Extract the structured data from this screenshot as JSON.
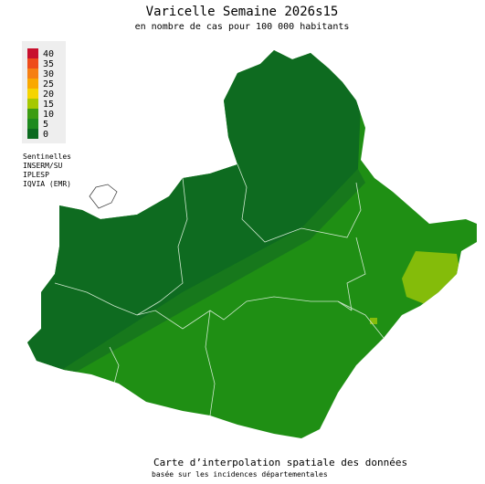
{
  "header": {
    "title": "Varicelle Semaine 2026s15",
    "subtitle": "en nombre de cas pour 100 000 habitants"
  },
  "legend": {
    "items": [
      {
        "label": 40,
        "color": "#c8102e"
      },
      {
        "label": 35,
        "color": "#ee4b1a"
      },
      {
        "label": 30,
        "color": "#f67f12"
      },
      {
        "label": 25,
        "color": "#f9a800"
      },
      {
        "label": 20,
        "color": "#f5d400"
      },
      {
        "label": 15,
        "color": "#a6c800"
      },
      {
        "label": 10,
        "color": "#3c9c12"
      },
      {
        "label": 5,
        "color": "#1e8a1e"
      },
      {
        "label": 0,
        "color": "#0b6a1f"
      }
    ]
  },
  "sources": [
    "Sentinelles",
    "INSERM/SU",
    "IPLESP",
    "IQVIA (EMR)"
  ],
  "footer": {
    "title": "Carte d’interpolation spatiale des données",
    "subtitle": "basée sur les incidences départementales"
  }
}
